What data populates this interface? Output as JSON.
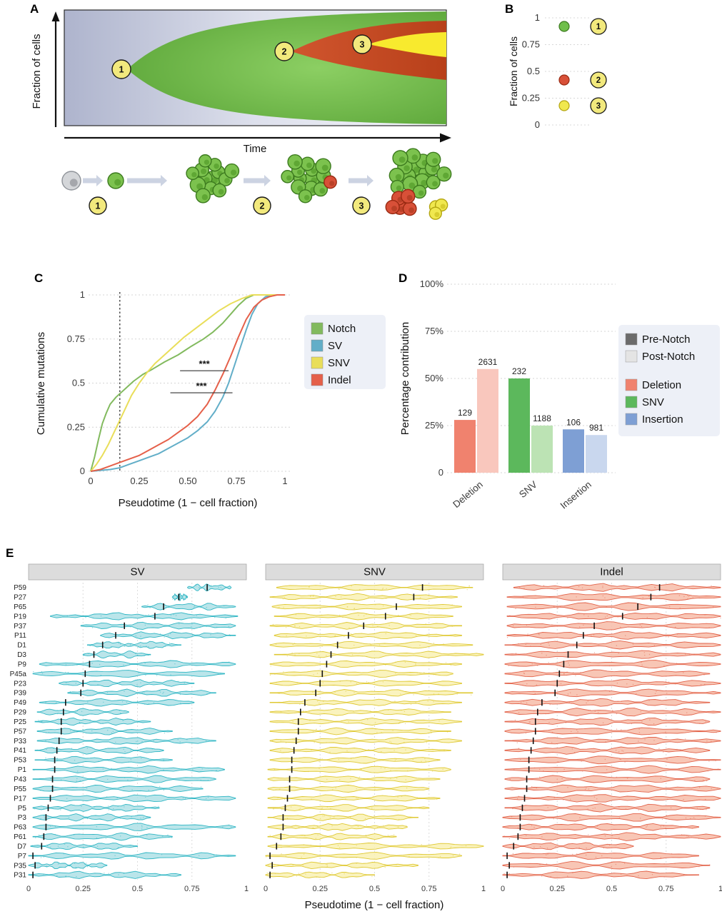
{
  "panel_a": {
    "label": "A",
    "y_axis_label": "Fraction of cells",
    "x_axis_label": "Time",
    "clones": [
      "1",
      "2",
      "3"
    ],
    "clone_colors": {
      "clone1": "#6ab14a",
      "clone2": "#c6431f",
      "clone3": "#f8ea2e"
    }
  },
  "panel_b": {
    "label": "B",
    "y_axis_label": "Fraction of cells",
    "chart_data": {
      "type": "scatter",
      "ylabel": "Fraction of cells",
      "ylim": [
        0,
        1
      ],
      "y_ticks": [
        {
          "label": "1",
          "value": 1
        },
        {
          "label": "0.75",
          "value": 0.75
        },
        {
          "label": "0.5",
          "value": 0.5
        },
        {
          "label": "0.25",
          "value": 0.25
        },
        {
          "label": "0",
          "value": 0
        }
      ],
      "points": [
        {
          "clone": "1",
          "value": 0.92,
          "fill": "#6fbf4a",
          "stroke": "#3c7a1e"
        },
        {
          "clone": "2",
          "value": 0.42,
          "fill": "#d85038",
          "stroke": "#992a12"
        },
        {
          "clone": "3",
          "value": 0.18,
          "fill": "#f0e84f",
          "stroke": "#b3a512"
        }
      ]
    }
  },
  "panel_c": {
    "label": "C",
    "chart_data": {
      "type": "line",
      "xlabel": "Pseudotime (1 − cell fraction)",
      "ylabel": "Cumulative mutations",
      "xlim": [
        0,
        1
      ],
      "ylim": [
        0,
        1
      ],
      "x_ticks": [
        "0",
        "0.25",
        "0.50",
        "0.75",
        "1"
      ],
      "y_ticks": [
        "0",
        "0.25",
        "0.5",
        "0.75",
        "1"
      ],
      "dotted_vline_x": 0.15,
      "legend_position": "right",
      "series": [
        {
          "name": "Notch",
          "color": "#82ba5e",
          "points": [
            [
              0,
              0
            ],
            [
              0.02,
              0.08
            ],
            [
              0.04,
              0.18
            ],
            [
              0.06,
              0.27
            ],
            [
              0.08,
              0.33
            ],
            [
              0.1,
              0.38
            ],
            [
              0.13,
              0.42
            ],
            [
              0.15,
              0.44
            ],
            [
              0.18,
              0.47
            ],
            [
              0.22,
              0.51
            ],
            [
              0.27,
              0.55
            ],
            [
              0.32,
              0.58
            ],
            [
              0.38,
              0.62
            ],
            [
              0.45,
              0.66
            ],
            [
              0.52,
              0.71
            ],
            [
              0.58,
              0.75
            ],
            [
              0.63,
              0.79
            ],
            [
              0.68,
              0.84
            ],
            [
              0.72,
              0.89
            ],
            [
              0.76,
              0.94
            ],
            [
              0.8,
              0.98
            ],
            [
              0.84,
              1
            ],
            [
              1,
              1
            ]
          ]
        },
        {
          "name": "SV",
          "color": "#62aec8",
          "points": [
            [
              0,
              0
            ],
            [
              0.05,
              0.005
            ],
            [
              0.1,
              0.01
            ],
            [
              0.15,
              0.02
            ],
            [
              0.2,
              0.04
            ],
            [
              0.25,
              0.06
            ],
            [
              0.3,
              0.08
            ],
            [
              0.35,
              0.1
            ],
            [
              0.4,
              0.13
            ],
            [
              0.45,
              0.16
            ],
            [
              0.5,
              0.19
            ],
            [
              0.55,
              0.23
            ],
            [
              0.6,
              0.28
            ],
            [
              0.64,
              0.34
            ],
            [
              0.68,
              0.42
            ],
            [
              0.71,
              0.5
            ],
            [
              0.74,
              0.6
            ],
            [
              0.77,
              0.7
            ],
            [
              0.8,
              0.8
            ],
            [
              0.83,
              0.89
            ],
            [
              0.86,
              0.95
            ],
            [
              0.9,
              0.99
            ],
            [
              0.94,
              1
            ],
            [
              1,
              1
            ]
          ]
        },
        {
          "name": "SNV",
          "color": "#e9de5a",
          "points": [
            [
              0,
              0
            ],
            [
              0.03,
              0.04
            ],
            [
              0.06,
              0.09
            ],
            [
              0.09,
              0.15
            ],
            [
              0.12,
              0.22
            ],
            [
              0.15,
              0.29
            ],
            [
              0.18,
              0.36
            ],
            [
              0.21,
              0.43
            ],
            [
              0.25,
              0.5
            ],
            [
              0.29,
              0.56
            ],
            [
              0.33,
              0.61
            ],
            [
              0.38,
              0.66
            ],
            [
              0.43,
              0.71
            ],
            [
              0.48,
              0.76
            ],
            [
              0.54,
              0.81
            ],
            [
              0.6,
              0.86
            ],
            [
              0.66,
              0.91
            ],
            [
              0.72,
              0.95
            ],
            [
              0.78,
              0.98
            ],
            [
              0.83,
              1
            ],
            [
              1,
              1
            ]
          ]
        },
        {
          "name": "Indel",
          "color": "#e5604a",
          "points": [
            [
              0,
              0
            ],
            [
              0.05,
              0.01
            ],
            [
              0.1,
              0.03
            ],
            [
              0.15,
              0.05
            ],
            [
              0.2,
              0.07
            ],
            [
              0.25,
              0.09
            ],
            [
              0.3,
              0.12
            ],
            [
              0.35,
              0.15
            ],
            [
              0.4,
              0.18
            ],
            [
              0.45,
              0.22
            ],
            [
              0.5,
              0.26
            ],
            [
              0.55,
              0.31
            ],
            [
              0.6,
              0.38
            ],
            [
              0.64,
              0.46
            ],
            [
              0.68,
              0.55
            ],
            [
              0.72,
              0.65
            ],
            [
              0.76,
              0.76
            ],
            [
              0.8,
              0.86
            ],
            [
              0.84,
              0.93
            ],
            [
              0.88,
              0.97
            ],
            [
              0.92,
              0.99
            ],
            [
              0.96,
              1
            ],
            [
              1,
              1
            ]
          ]
        }
      ],
      "significance": [
        {
          "x0": 0.46,
          "x1": 0.71,
          "y": 0.57,
          "label": "***"
        },
        {
          "x0": 0.41,
          "x1": 0.73,
          "y": 0.445,
          "label": "***"
        }
      ]
    }
  },
  "panel_d": {
    "label": "D",
    "chart_data": {
      "type": "bar",
      "ylabel": "Percentage contribution",
      "ylim": [
        0,
        100
      ],
      "y_ticks": [
        "0",
        "25%",
        "50%",
        "75%",
        "100%"
      ],
      "categories": [
        "Deletion",
        "SNV",
        "Insertion"
      ],
      "series": [
        {
          "name": "Pre-Notch",
          "values": [
            28,
            50,
            23
          ],
          "count_labels": [
            "129",
            "232",
            "106"
          ]
        },
        {
          "name": "Post-Notch",
          "values": [
            55,
            25,
            20
          ],
          "count_labels": [
            "2631",
            "1188",
            "981"
          ]
        }
      ],
      "category_colors": {
        "Deletion": {
          "pre": "#f0826e",
          "post": "#f9c7bd"
        },
        "SNV": {
          "pre": "#5cb85c",
          "post": "#bce3b4"
        },
        "Insertion": {
          "pre": "#7e9fd4",
          "post": "#c9d7ee"
        }
      },
      "legend": {
        "notch_items": [
          {
            "label": "Pre-Notch",
            "color": "#6b6b6b"
          },
          {
            "label": "Post-Notch",
            "color": "#e4e4e4"
          }
        ],
        "type_items": [
          {
            "label": "Deletion",
            "color": "#f0826e"
          },
          {
            "label": "SNV",
            "color": "#5cb85c"
          },
          {
            "label": "Insertion",
            "color": "#7e9fd4"
          }
        ]
      }
    }
  },
  "panel_e": {
    "label": "E",
    "xlabel": "Pseudotime (1 − cell fraction)",
    "chart_data": {
      "type": "violin",
      "x_ticks": [
        "0",
        "0.25",
        "0.5",
        "0.75",
        "1"
      ],
      "xlim": [
        0,
        1
      ],
      "patients": [
        "P59",
        "P27",
        "P65",
        "P19",
        "P37",
        "P11",
        "D1",
        "D3",
        "P9",
        "P45a",
        "P23",
        "P39",
        "P49",
        "P29",
        "P25",
        "P57",
        "P33",
        "P41",
        "P53",
        "P1",
        "P43",
        "P55",
        "P17",
        "P5",
        "P3",
        "P63",
        "P61",
        "D7",
        "P7",
        "P35",
        "P31"
      ],
      "facets": [
        {
          "title": "SV",
          "fill": "#aee1e6",
          "stroke": "#2fb6c4",
          "rows": [
            [
              0.73,
              0.82,
              0.93
            ],
            [
              0.66,
              0.69,
              0.73
            ],
            [
              0.52,
              0.62,
              0.95
            ],
            [
              0.1,
              0.58,
              0.96
            ],
            [
              0.24,
              0.44,
              0.95
            ],
            [
              0.33,
              0.4,
              0.95
            ],
            [
              0.27,
              0.34,
              0.7
            ],
            [
              0.25,
              0.3,
              0.56
            ],
            [
              0.05,
              0.28,
              0.95
            ],
            [
              0.02,
              0.26,
              0.9
            ],
            [
              0.14,
              0.25,
              0.76
            ],
            [
              0.18,
              0.24,
              0.86
            ],
            [
              0.05,
              0.17,
              0.76
            ],
            [
              0.04,
              0.16,
              0.46
            ],
            [
              0.03,
              0.15,
              0.56
            ],
            [
              0.04,
              0.15,
              0.66
            ],
            [
              0.04,
              0.14,
              0.86
            ],
            [
              0.03,
              0.13,
              0.62
            ],
            [
              0.03,
              0.12,
              0.66
            ],
            [
              0.02,
              0.12,
              0.9
            ],
            [
              0.02,
              0.11,
              0.86
            ],
            [
              0.02,
              0.11,
              0.8
            ],
            [
              0.02,
              0.1,
              0.95
            ],
            [
              0.02,
              0.09,
              0.6
            ],
            [
              0.02,
              0.08,
              0.56
            ],
            [
              0.02,
              0.08,
              0.95
            ],
            [
              0.02,
              0.07,
              0.66
            ],
            [
              0.01,
              0.06,
              0.5
            ],
            [
              0.0,
              0.02,
              0.95
            ],
            [
              0.0,
              0.03,
              0.36
            ],
            [
              0.0,
              0.02,
              0.7
            ]
          ]
        },
        {
          "title": "SNV",
          "fill": "#f9f1b3",
          "stroke": "#dfc832",
          "rows": [
            [
              0.05,
              0.72,
              0.95
            ],
            [
              0.02,
              0.68,
              0.88
            ],
            [
              0.03,
              0.6,
              0.9
            ],
            [
              0.04,
              0.55,
              0.86
            ],
            [
              0.02,
              0.45,
              0.9
            ],
            [
              0.04,
              0.38,
              0.9
            ],
            [
              0.02,
              0.33,
              0.95
            ],
            [
              0.04,
              0.3,
              1.0
            ],
            [
              0.02,
              0.28,
              0.9
            ],
            [
              0.02,
              0.26,
              0.86
            ],
            [
              0.02,
              0.25,
              0.9
            ],
            [
              0.02,
              0.23,
              0.95
            ],
            [
              0.02,
              0.18,
              0.9
            ],
            [
              0.02,
              0.16,
              0.85
            ],
            [
              0.02,
              0.15,
              0.9
            ],
            [
              0.02,
              0.15,
              0.85
            ],
            [
              0.02,
              0.14,
              0.9
            ],
            [
              0.02,
              0.13,
              0.85
            ],
            [
              0.02,
              0.12,
              0.8
            ],
            [
              0.01,
              0.12,
              0.85
            ],
            [
              0.01,
              0.11,
              0.8
            ],
            [
              0.01,
              0.11,
              0.75
            ],
            [
              0.01,
              0.1,
              0.8
            ],
            [
              0.01,
              0.09,
              0.75
            ],
            [
              0.01,
              0.08,
              0.7
            ],
            [
              0.01,
              0.08,
              0.65
            ],
            [
              0.01,
              0.07,
              0.6
            ],
            [
              0.01,
              0.05,
              1.0
            ],
            [
              0.0,
              0.02,
              0.9
            ],
            [
              0.0,
              0.03,
              0.7
            ],
            [
              0.0,
              0.02,
              0.5
            ]
          ]
        },
        {
          "title": "Indel",
          "fill": "#f7bca8",
          "stroke": "#e2634a",
          "rows": [
            [
              0.05,
              0.72,
              1.0
            ],
            [
              0.02,
              0.68,
              1.0
            ],
            [
              0.02,
              0.62,
              1.0
            ],
            [
              0.02,
              0.55,
              1.0
            ],
            [
              0.02,
              0.42,
              1.0
            ],
            [
              0.02,
              0.37,
              1.0
            ],
            [
              0.01,
              0.34,
              1.0
            ],
            [
              0.01,
              0.3,
              1.0
            ],
            [
              0.01,
              0.28,
              1.0
            ],
            [
              0.01,
              0.26,
              0.95
            ],
            [
              0.01,
              0.25,
              1.0
            ],
            [
              0.01,
              0.24,
              1.0
            ],
            [
              0.01,
              0.18,
              0.95
            ],
            [
              0.01,
              0.16,
              1.0
            ],
            [
              0.01,
              0.15,
              0.95
            ],
            [
              0.01,
              0.15,
              1.0
            ],
            [
              0.01,
              0.14,
              1.0
            ],
            [
              0.01,
              0.13,
              0.95
            ],
            [
              0.01,
              0.12,
              1.0
            ],
            [
              0.01,
              0.12,
              1.0
            ],
            [
              0.01,
              0.11,
              0.95
            ],
            [
              0.01,
              0.11,
              1.0
            ],
            [
              0.01,
              0.1,
              1.0
            ],
            [
              0.01,
              0.09,
              0.95
            ],
            [
              0.0,
              0.08,
              1.0
            ],
            [
              0.0,
              0.08,
              0.9
            ],
            [
              0.0,
              0.07,
              1.0
            ],
            [
              0.0,
              0.05,
              0.6
            ],
            [
              0.0,
              0.02,
              0.9
            ],
            [
              0.0,
              0.03,
              0.95
            ],
            [
              0.0,
              0.02,
              0.9
            ]
          ]
        }
      ]
    }
  }
}
